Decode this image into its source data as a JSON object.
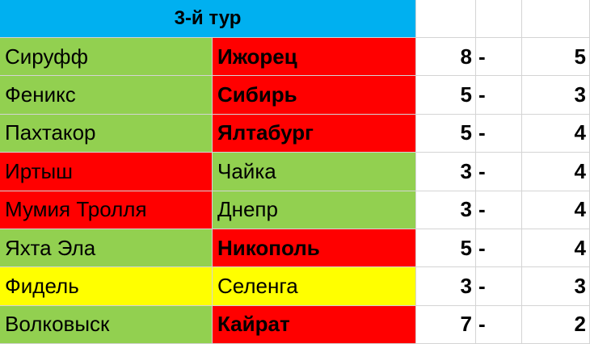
{
  "title": "3-й тур",
  "colors": {
    "header": "#00b0f0",
    "win": "#92d050",
    "loss": "#ff0000",
    "draw": "#ffff00"
  },
  "matches": [
    {
      "home": "Сируфф",
      "home_status": "win",
      "away": "Ижорец",
      "away_status": "loss",
      "home_score": "8",
      "sep": "-",
      "away_score": "5"
    },
    {
      "home": "Феникс",
      "home_status": "win",
      "away": "Сибирь",
      "away_status": "loss",
      "home_score": "5",
      "sep": "-",
      "away_score": "3"
    },
    {
      "home": "Пахтакор",
      "home_status": "win",
      "away": "Ялтабург",
      "away_status": "loss",
      "home_score": "5",
      "sep": "-",
      "away_score": "4"
    },
    {
      "home": "Иртыш",
      "home_status": "loss",
      "away": "Чайка",
      "away_status": "win",
      "home_score": "3",
      "sep": "-",
      "away_score": "4"
    },
    {
      "home": "Мумия Тролля",
      "home_status": "loss",
      "away": "Днепр",
      "away_status": "win",
      "home_score": "3",
      "sep": "-",
      "away_score": "4"
    },
    {
      "home": "Яхта Эла",
      "home_status": "win",
      "away": "Никополь",
      "away_status": "loss",
      "home_score": "5",
      "sep": "-",
      "away_score": "4"
    },
    {
      "home": "Фидель",
      "home_status": "draw",
      "away": "Селенга",
      "away_status": "draw",
      "home_score": "3",
      "sep": "-",
      "away_score": "3"
    },
    {
      "home": "Волковыск",
      "home_status": "win",
      "away": "Кайрат",
      "away_status": "loss",
      "home_score": "7",
      "sep": "-",
      "away_score": "2"
    }
  ]
}
